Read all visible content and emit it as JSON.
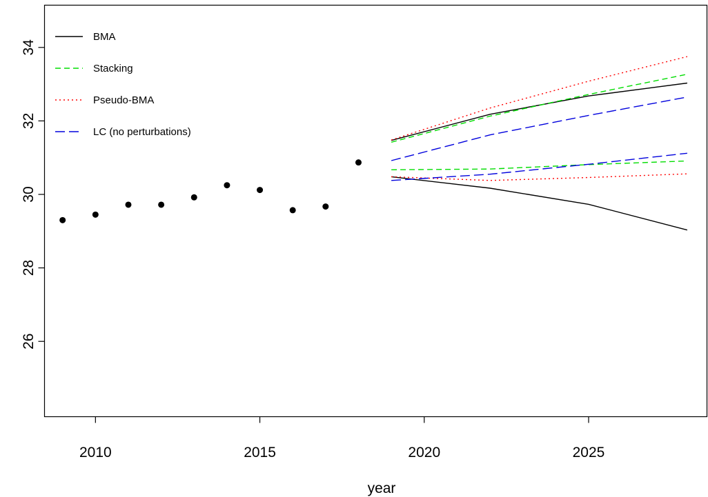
{
  "chart_data": {
    "type": "line",
    "title": "",
    "xlabel": "year",
    "ylabel": "",
    "xlim": [
      2008.45,
      2028.6
    ],
    "ylim": [
      23.95,
      35.15
    ],
    "x_ticks": [
      2010,
      2015,
      2020,
      2025
    ],
    "y_ticks": [
      26,
      28,
      30,
      32,
      34
    ],
    "grid": false,
    "legend_position": "top-left",
    "observed": {
      "x": [
        2009,
        2010,
        2011,
        2012,
        2013,
        2014,
        2015,
        2016,
        2017,
        2018
      ],
      "y": [
        29.3,
        29.45,
        29.72,
        29.72,
        29.92,
        30.25,
        30.12,
        29.57,
        29.67,
        30.87
      ]
    },
    "series": [
      {
        "name": "BMA",
        "color": "#000000",
        "dash": "solid",
        "bounds": [
          {
            "x": [
              2019,
              2022,
              2025,
              2028
            ],
            "y": [
              31.47,
              32.18,
              32.68,
              33.03
            ]
          },
          {
            "x": [
              2019,
              2022,
              2025,
              2028
            ],
            "y": [
              30.48,
              30.17,
              29.73,
              29.03
            ]
          }
        ]
      },
      {
        "name": "Stacking",
        "color": "#00dd00",
        "dash": "dashed",
        "bounds": [
          {
            "x": [
              2019,
              2022,
              2025,
              2028
            ],
            "y": [
              31.42,
              32.13,
              32.72,
              33.27
            ]
          },
          {
            "x": [
              2019,
              2022,
              2025,
              2028
            ],
            "y": [
              30.67,
              30.69,
              30.81,
              30.91
            ]
          }
        ]
      },
      {
        "name": "Pseudo-BMA",
        "color": "#ff0000",
        "dash": "dotted",
        "bounds": [
          {
            "x": [
              2019,
              2022,
              2025,
              2028
            ],
            "y": [
              31.48,
              32.35,
              33.08,
              33.75
            ]
          },
          {
            "x": [
              2019,
              2022,
              2025,
              2028
            ],
            "y": [
              30.48,
              30.38,
              30.46,
              30.56
            ]
          }
        ]
      },
      {
        "name": "LC (no perturbations)",
        "color": "#0000dd",
        "dash": "longdash",
        "bounds": [
          {
            "x": [
              2019,
              2022,
              2025,
              2028
            ],
            "y": [
              30.92,
              31.62,
              32.15,
              32.65
            ]
          },
          {
            "x": [
              2019,
              2022,
              2025,
              2028
            ],
            "y": [
              30.38,
              30.55,
              30.82,
              31.12
            ]
          }
        ]
      }
    ]
  }
}
